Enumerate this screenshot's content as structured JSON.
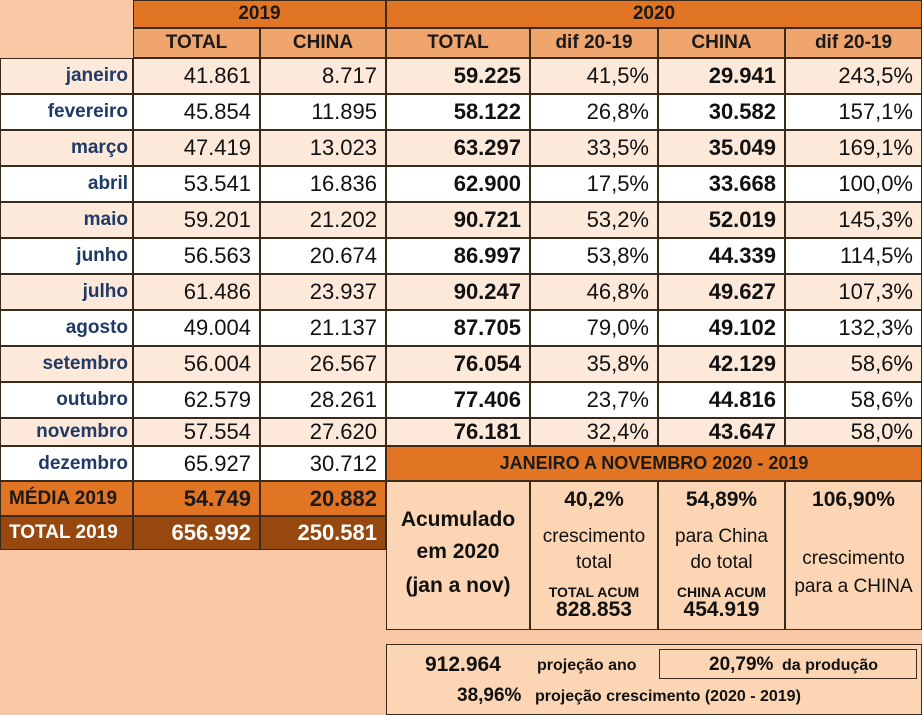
{
  "year2019": "2019",
  "year2020": "2020",
  "headers": [
    "TOTAL",
    "CHINA",
    "TOTAL",
    "dif 20-19",
    "CHINA",
    "dif 20-19"
  ],
  "rows": [
    {
      "month": "janeiro",
      "t19": "41.861",
      "c19": "8.717",
      "t20": "59.225",
      "d1": "41,5%",
      "c20": "29.941",
      "d2": "243,5%"
    },
    {
      "month": "fevereiro",
      "t19": "45.854",
      "c19": "11.895",
      "t20": "58.122",
      "d1": "26,8%",
      "c20": "30.582",
      "d2": "157,1%"
    },
    {
      "month": "março",
      "t19": "47.419",
      "c19": "13.023",
      "t20": "63.297",
      "d1": "33,5%",
      "c20": "35.049",
      "d2": "169,1%"
    },
    {
      "month": "abril",
      "t19": "53.541",
      "c19": "16.836",
      "t20": "62.900",
      "d1": "17,5%",
      "c20": "33.668",
      "d2": "100,0%"
    },
    {
      "month": "maio",
      "t19": "59.201",
      "c19": "21.202",
      "t20": "90.721",
      "d1": "53,2%",
      "c20": "52.019",
      "d2": "145,3%"
    },
    {
      "month": "junho",
      "t19": "56.563",
      "c19": "20.674",
      "t20": "86.997",
      "d1": "53,8%",
      "c20": "44.339",
      "d2": "114,5%"
    },
    {
      "month": "julho",
      "t19": "61.486",
      "c19": "23.937",
      "t20": "90.247",
      "d1": "46,8%",
      "c20": "49.627",
      "d2": "107,3%"
    },
    {
      "month": "agosto",
      "t19": "49.004",
      "c19": "21.137",
      "t20": "87.705",
      "d1": "79,0%",
      "c20": "49.102",
      "d2": "132,3%"
    },
    {
      "month": "setembro",
      "t19": "56.004",
      "c19": "26.567",
      "t20": "76.054",
      "d1": "35,8%",
      "c20": "42.129",
      "d2": "58,6%"
    },
    {
      "month": "outubro",
      "t19": "62.579",
      "c19": "28.261",
      "t20": "77.406",
      "d1": "23,7%",
      "c20": "44.816",
      "d2": "58,6%"
    },
    {
      "month": "novembro",
      "t19": "57.554",
      "c19": "27.620",
      "t20": "76.181",
      "d1": "32,4%",
      "c20": "43.647",
      "d2": "58,0%"
    }
  ],
  "dezembro": {
    "month": "dezembro",
    "t19": "65.927",
    "c19": "30.712"
  },
  "media": {
    "label": "MÉDIA 2019",
    "total": "54.749",
    "china": "20.882"
  },
  "total2019": {
    "label": "TOTAL 2019",
    "total": "656.992",
    "china": "250.581"
  },
  "summary": {
    "title": "JANEIRO A NOVEMBRO 2020 - 2019",
    "acc_line1": "Acumulado",
    "acc_line2": "em 2020",
    "acc_line3": "(jan a nov)",
    "growth_pct": "40,2%",
    "growth_l1": "crescimento",
    "growth_l2": "total",
    "total_acum_label": "TOTAL ACUM",
    "total_acum_value": "828.853",
    "china_share_pct": "54,89%",
    "china_share_l1": "para China",
    "china_share_l2": "do total",
    "china_acum_label": "CHINA ACUM",
    "china_acum_value": "454.919",
    "china_growth_pct": "106,90%",
    "china_growth_l1": "crescimento",
    "china_growth_l2": "para a CHINA"
  },
  "projection": {
    "value": "912.964",
    "value_label": "projeção ano",
    "share_pct": "20,79%",
    "share_label": "da produção",
    "growth_pct": "38,96%",
    "growth_label": "projeção crescimento (2020 - 2019)"
  }
}
